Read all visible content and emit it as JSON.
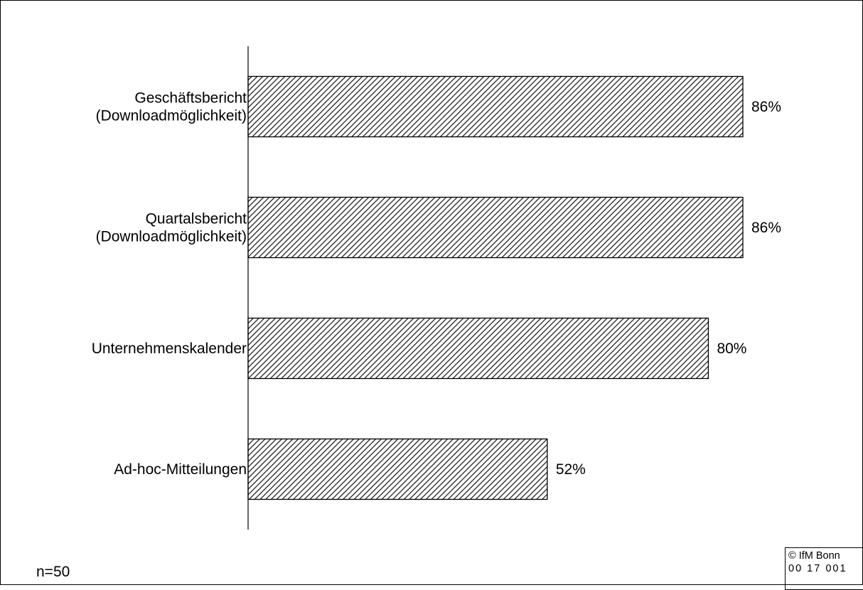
{
  "chart_data": {
    "type": "bar",
    "orientation": "horizontal",
    "categories": [
      [
        "Geschäftsbericht",
        "(Downloadmöglichkeit)"
      ],
      [
        "Quartalsbericht",
        "(Downloadmöglichkeit)"
      ],
      [
        "Unternehmenskalender"
      ],
      [
        "Ad-hoc-Mitteilungen"
      ]
    ],
    "values": [
      86,
      86,
      80,
      52
    ],
    "value_labels": [
      "86%",
      "86%",
      "80%",
      "52%"
    ],
    "unit": "%",
    "xlim": [
      0,
      100
    ],
    "bar_pattern": "diagonal-hatch",
    "bar_color": "#000000",
    "legend": "none",
    "grid": false
  },
  "footer": {
    "note": "n=50",
    "credit_line1": "© IfM Bonn",
    "credit_line2": "00 17 001"
  }
}
